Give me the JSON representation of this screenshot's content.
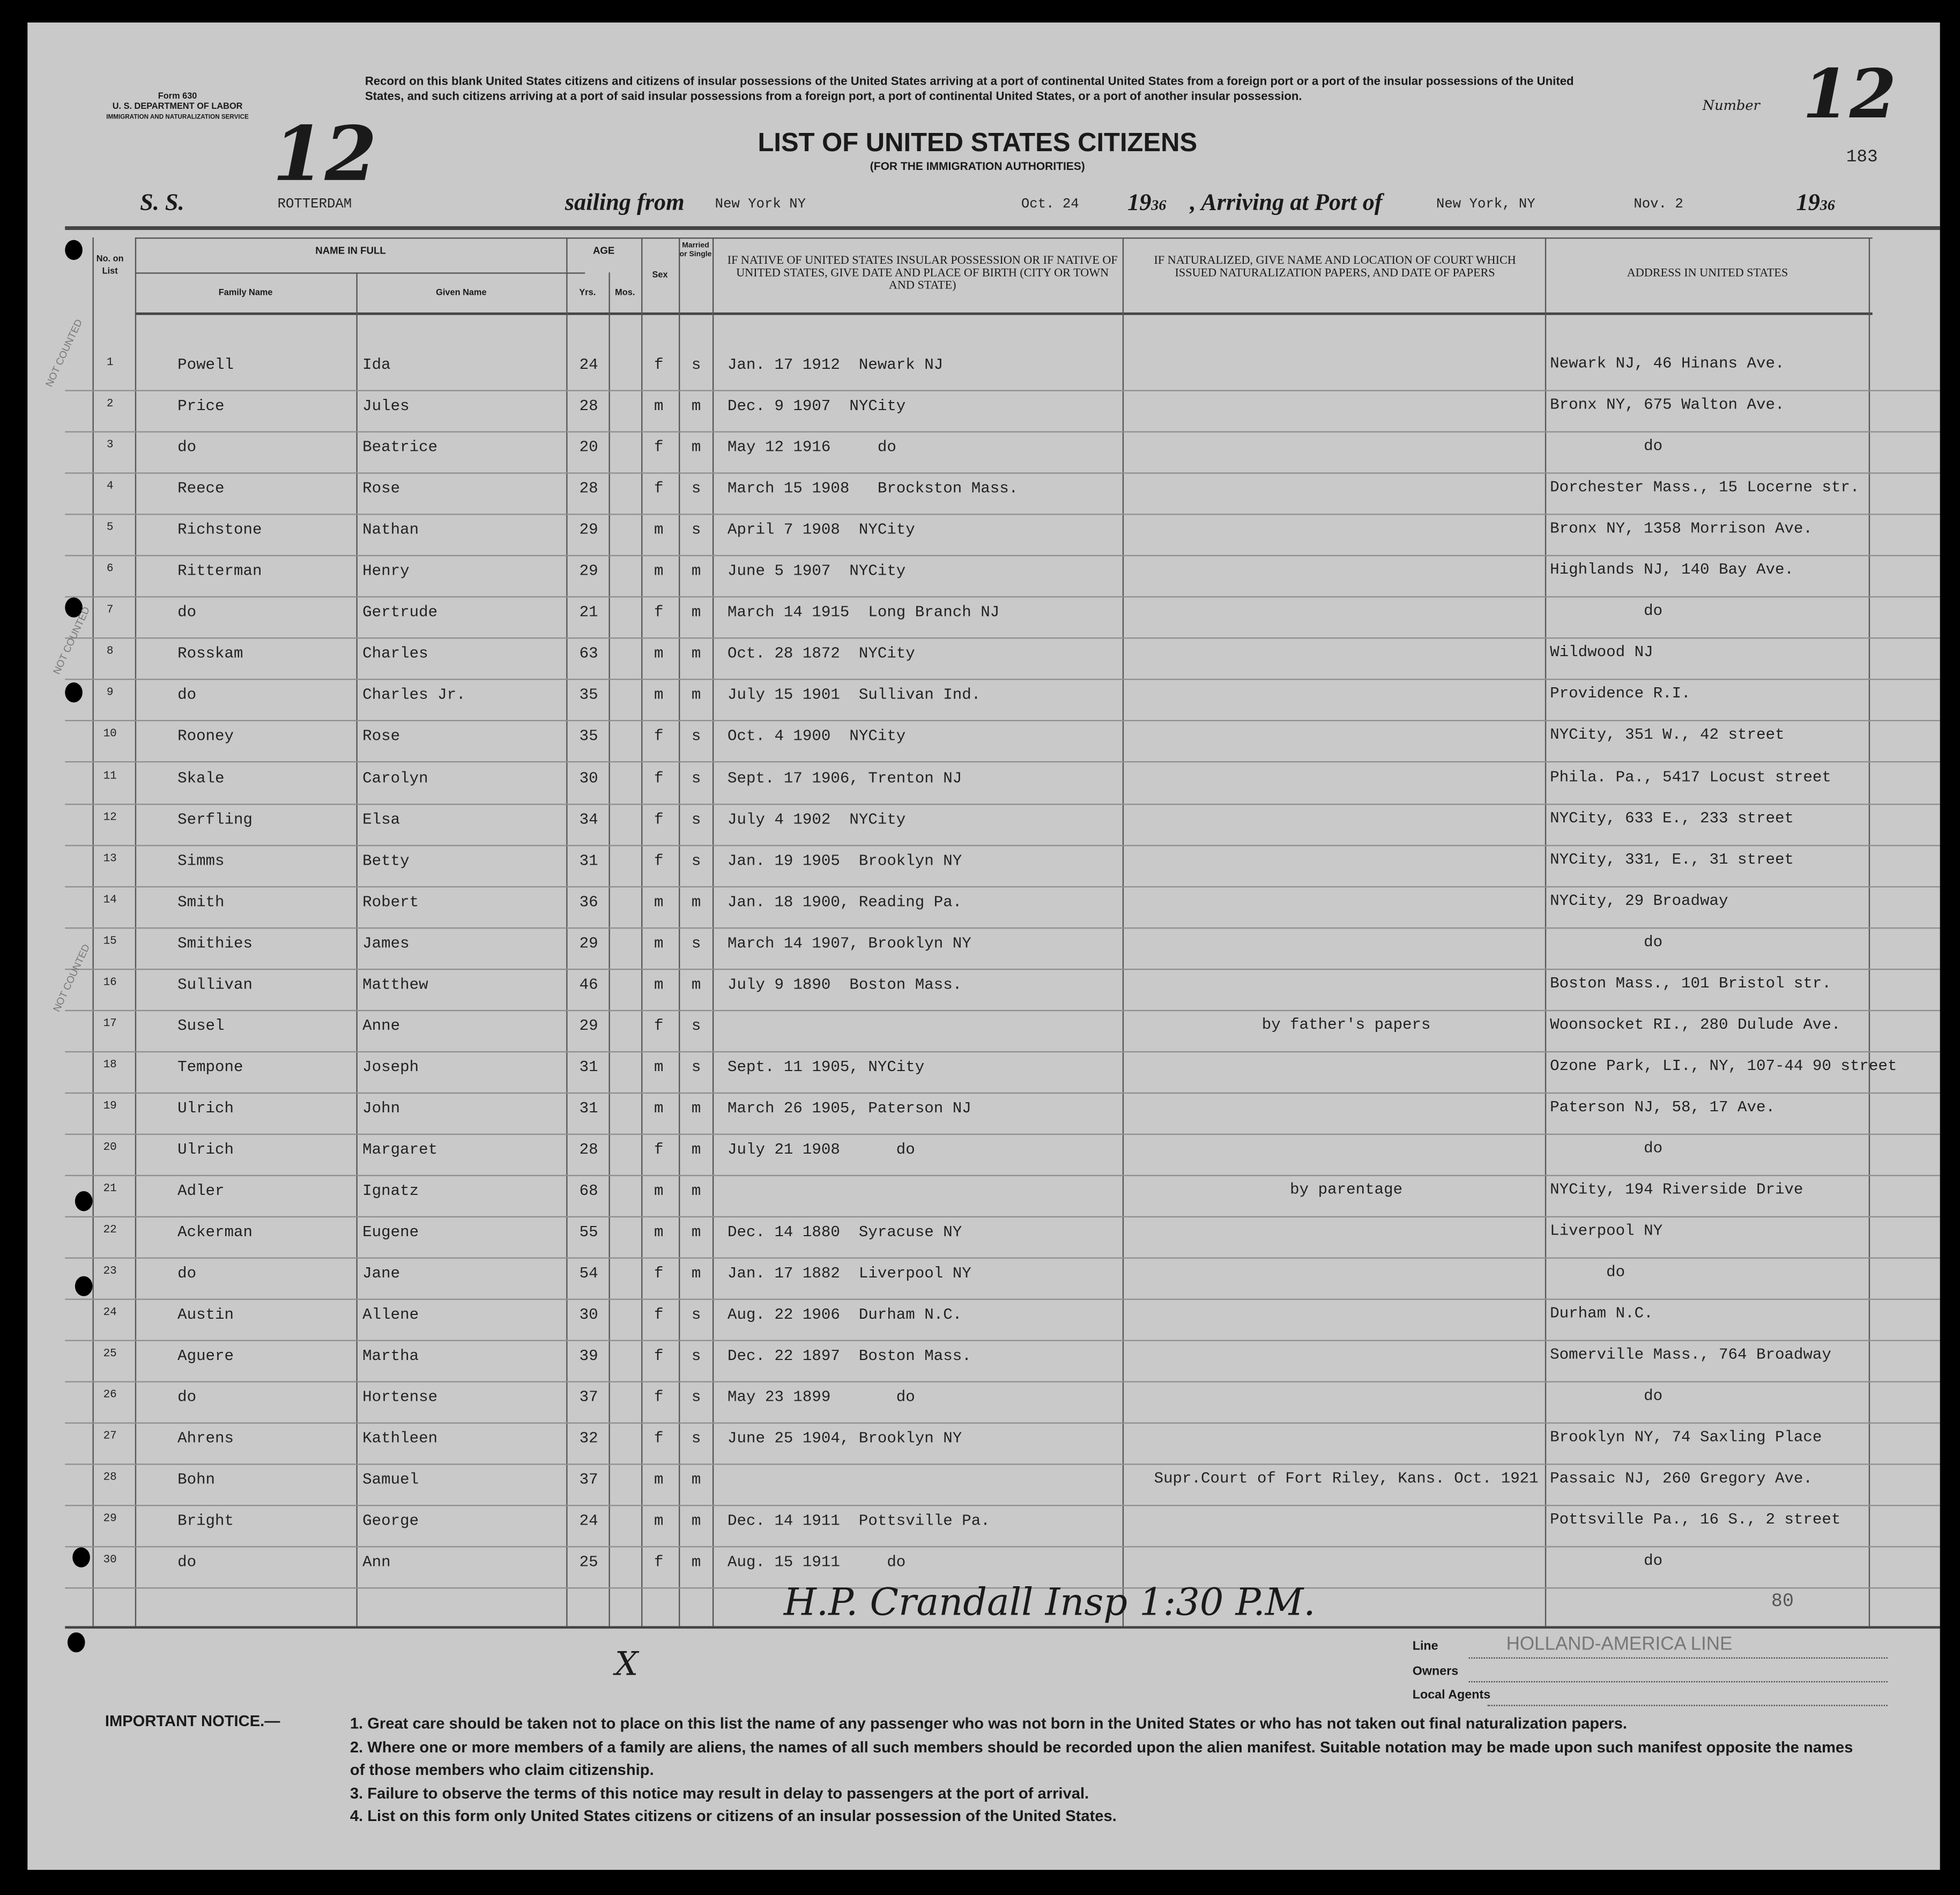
{
  "form": {
    "form_no": "Form 630",
    "dept": "U. S. DEPARTMENT OF LABOR",
    "service": "IMMIGRATION AND NATURALIZATION SERVICE",
    "instructions": "Record on this blank United States citizens and citizens of insular possessions of the United States arriving at a port of continental United States from a foreign port or a port of the insular possessions of the United States, and such citizens arriving at a port of said insular possessions from a foreign port, a port of continental United States, or a port of another insular possession.",
    "title": "LIST OF UNITED STATES CITIZENS",
    "subtitle": "(FOR THE IMMIGRATION AUTHORITIES)",
    "number_label": "Number",
    "number": "12",
    "page_stamp": "183",
    "handwritten_corner": "12"
  },
  "voyage": {
    "ss_label": "S. S.",
    "ship": "ROTTERDAM",
    "sailing_label": "sailing from",
    "from": "New York NY",
    "date_from": "Oct. 24",
    "year_prefix": "19",
    "year_from": "36",
    "arriving_label": ", Arriving at Port of",
    "to": "New York, NY",
    "date_to": "Nov. 2",
    "year_to": "36"
  },
  "headers": {
    "no": "No. on List",
    "name_in_full": "NAME IN FULL",
    "family": "Family Name",
    "given": "Given Name",
    "age": "AGE",
    "yrs": "Yrs.",
    "mos": "Mos.",
    "sex": "Sex",
    "married": "Married or Single",
    "birth": "IF NATIVE OF UNITED STATES INSULAR POSSESSION OR IF NATIVE OF UNITED STATES, GIVE DATE AND PLACE OF BIRTH (CITY OR TOWN AND STATE)",
    "naturalized": "IF NATURALIZED, GIVE NAME AND LOCATION OF COURT WHICH ISSUED NATURALIZATION PAPERS, AND DATE OF PAPERS",
    "address": "ADDRESS IN UNITED STATES"
  },
  "rows": [
    {
      "no": "1",
      "family": "Powell",
      "given": "Ida",
      "age": "24",
      "sex": "f",
      "ms": "s",
      "birth": "Jan. 17 1912  Newark NJ",
      "nat": "",
      "addr": "Newark NJ, 46 Hinans Ave."
    },
    {
      "no": "2",
      "family": "Price",
      "given": "Jules",
      "age": "28",
      "sex": "m",
      "ms": "m",
      "birth": "Dec. 9 1907  NYCity",
      "nat": "",
      "addr": "Bronx NY, 675 Walton Ave."
    },
    {
      "no": "3",
      "family": "do",
      "given": "Beatrice",
      "age": "20",
      "sex": "f",
      "ms": "m",
      "birth": "May 12 1916     do",
      "nat": "",
      "addr": "          do"
    },
    {
      "no": "4",
      "family": "Reece",
      "given": "Rose",
      "age": "28",
      "sex": "f",
      "ms": "s",
      "birth": "March 15 1908   Brockston Mass.",
      "nat": "",
      "addr": "Dorchester Mass., 15 Locerne str."
    },
    {
      "no": "5",
      "family": "Richstone",
      "given": "Nathan",
      "age": "29",
      "sex": "m",
      "ms": "s",
      "birth": "April 7 1908  NYCity",
      "nat": "",
      "addr": "Bronx NY, 1358 Morrison Ave."
    },
    {
      "no": "6",
      "family": "Ritterman",
      "given": "Henry",
      "age": "29",
      "sex": "m",
      "ms": "m",
      "birth": "June 5 1907  NYCity",
      "nat": "",
      "addr": "Highlands NJ, 140 Bay Ave."
    },
    {
      "no": "7",
      "family": "do",
      "given": "Gertrude",
      "age": "21",
      "sex": "f",
      "ms": "m",
      "birth": "March 14 1915  Long Branch NJ",
      "nat": "",
      "addr": "          do"
    },
    {
      "no": "8",
      "family": "Rosskam",
      "given": "Charles",
      "age": "63",
      "sex": "m",
      "ms": "m",
      "birth": "Oct. 28 1872  NYCity",
      "nat": "",
      "addr": "Wildwood NJ"
    },
    {
      "no": "9",
      "family": "do",
      "given": "Charles Jr.",
      "age": "35",
      "sex": "m",
      "ms": "m",
      "birth": "July 15 1901  Sullivan Ind.",
      "nat": "",
      "addr": "Providence R.I."
    },
    {
      "no": "10",
      "family": "Rooney",
      "given": "Rose",
      "age": "35",
      "sex": "f",
      "ms": "s",
      "birth": "Oct. 4 1900  NYCity",
      "nat": "",
      "addr": "NYCity, 351 W., 42 street"
    },
    {
      "no": "11",
      "family": "Skale",
      "given": "Carolyn",
      "age": "30",
      "sex": "f",
      "ms": "s",
      "birth": "Sept. 17 1906, Trenton NJ",
      "nat": "",
      "addr": "Phila. Pa., 5417 Locust street"
    },
    {
      "no": "12",
      "family": "Serfling",
      "given": "Elsa",
      "age": "34",
      "sex": "f",
      "ms": "s",
      "birth": "July 4 1902  NYCity",
      "nat": "",
      "addr": "NYCity, 633 E., 233 street"
    },
    {
      "no": "13",
      "family": "Simms",
      "given": "Betty",
      "age": "31",
      "sex": "f",
      "ms": "s",
      "birth": "Jan. 19 1905  Brooklyn NY",
      "nat": "",
      "addr": "NYCity, 331, E., 31 street"
    },
    {
      "no": "14",
      "family": "Smith",
      "given": "Robert",
      "age": "36",
      "sex": "m",
      "ms": "m",
      "birth": "Jan. 18 1900, Reading Pa.",
      "nat": "",
      "addr": "NYCity, 29 Broadway"
    },
    {
      "no": "15",
      "family": "Smithies",
      "given": "James",
      "age": "29",
      "sex": "m",
      "ms": "s",
      "birth": "March 14 1907, Brooklyn NY",
      "nat": "",
      "addr": "          do"
    },
    {
      "no": "16",
      "family": "Sullivan",
      "given": "Matthew",
      "age": "46",
      "sex": "m",
      "ms": "m",
      "birth": "July 9 1890  Boston Mass.",
      "nat": "",
      "addr": "Boston Mass., 101 Bristol str."
    },
    {
      "no": "17",
      "family": "Susel",
      "given": "Anne",
      "age": "29",
      "sex": "f",
      "ms": "s",
      "birth": "",
      "nat": "by father's papers",
      "addr": "Woonsocket RI., 280 Dulude Ave."
    },
    {
      "no": "18",
      "family": "Tempone",
      "given": "Joseph",
      "age": "31",
      "sex": "m",
      "ms": "s",
      "birth": "Sept. 11 1905, NYCity",
      "nat": "",
      "addr": "Ozone Park, LI., NY, 107-44 90 street"
    },
    {
      "no": "19",
      "family": "Ulrich",
      "given": "John",
      "age": "31",
      "sex": "m",
      "ms": "m",
      "birth": "March 26 1905, Paterson NJ",
      "nat": "",
      "addr": "Paterson NJ, 58, 17 Ave."
    },
    {
      "no": "20",
      "family": "Ulrich",
      "given": "Margaret",
      "age": "28",
      "sex": "f",
      "ms": "m",
      "birth": "July 21 1908      do",
      "nat": "",
      "addr": "          do"
    },
    {
      "no": "21",
      "family": "Adler",
      "given": "Ignatz",
      "age": "68",
      "sex": "m",
      "ms": "m",
      "birth": "",
      "nat": "by parentage",
      "addr": "NYCity, 194 Riverside Drive"
    },
    {
      "no": "22",
      "family": "Ackerman",
      "given": "Eugene",
      "age": "55",
      "sex": "m",
      "ms": "m",
      "birth": "Dec. 14 1880  Syracuse NY",
      "nat": "",
      "addr": "Liverpool NY"
    },
    {
      "no": "23",
      "family": "do",
      "given": "Jane",
      "age": "54",
      "sex": "f",
      "ms": "m",
      "birth": "Jan. 17 1882  Liverpool NY",
      "nat": "",
      "addr": "      do"
    },
    {
      "no": "24",
      "family": "Austin",
      "given": "Allene",
      "age": "30",
      "sex": "f",
      "ms": "s",
      "birth": "Aug. 22 1906  Durham N.C.",
      "nat": "",
      "addr": "Durham N.C."
    },
    {
      "no": "25",
      "family": "Aguere",
      "given": "Martha",
      "age": "39",
      "sex": "f",
      "ms": "s",
      "birth": "Dec. 22 1897  Boston Mass.",
      "nat": "",
      "addr": "Somerville Mass., 764 Broadway"
    },
    {
      "no": "26",
      "family": "do",
      "given": "Hortense",
      "age": "37",
      "sex": "f",
      "ms": "s",
      "birth": "May 23 1899       do",
      "nat": "",
      "addr": "          do"
    },
    {
      "no": "27",
      "family": "Ahrens",
      "given": "Kathleen",
      "age": "32",
      "sex": "f",
      "ms": "s",
      "birth": "June 25 1904, Brooklyn NY",
      "nat": "",
      "addr": "Brooklyn NY, 74 Saxling Place"
    },
    {
      "no": "28",
      "family": "Bohn",
      "given": "Samuel",
      "age": "37",
      "sex": "m",
      "ms": "m",
      "birth": "",
      "nat": "Supr.Court of Fort Riley, Kans. Oct. 1921",
      "addr": "Passaic NJ, 260 Gregory Ave."
    },
    {
      "no": "29",
      "family": "Bright",
      "given": "George",
      "age": "24",
      "sex": "m",
      "ms": "m",
      "birth": "Dec. 14 1911  Pottsville Pa.",
      "nat": "",
      "addr": "Pottsville Pa., 16 S., 2 street"
    },
    {
      "no": "30",
      "family": "do",
      "given": "Ann",
      "age": "25",
      "sex": "f",
      "ms": "m",
      "birth": "Aug. 15 1911     do",
      "nat": "",
      "addr": "          do"
    }
  ],
  "margin_stamps": {
    "not_counted": "NOT COUNTED"
  },
  "signature": "H.P. Crandall Insp 1:30 P.M.",
  "tally": "80",
  "mark": "X",
  "footer": {
    "line_label": "Line",
    "line_value": "HOLLAND-AMERICA LINE",
    "owners_label": "Owners",
    "agents_label": "Local Agents",
    "notice_title": "IMPORTANT NOTICE.—",
    "notices": [
      "1. Great care should be taken not to place on this list the name of any passenger who was not born in the United States or who has not taken out final naturalization papers.",
      "2. Where one or more members of a family are aliens, the names of all such members should be recorded upon the alien manifest.  Suitable notation may be made upon such manifest opposite the names of those members who claim citizenship.",
      "3. Failure to observe the terms of this notice may result in delay to passengers at the port of arrival.",
      "4. List on this form only United States citizens or citizens of an insular possession of the United States."
    ]
  }
}
